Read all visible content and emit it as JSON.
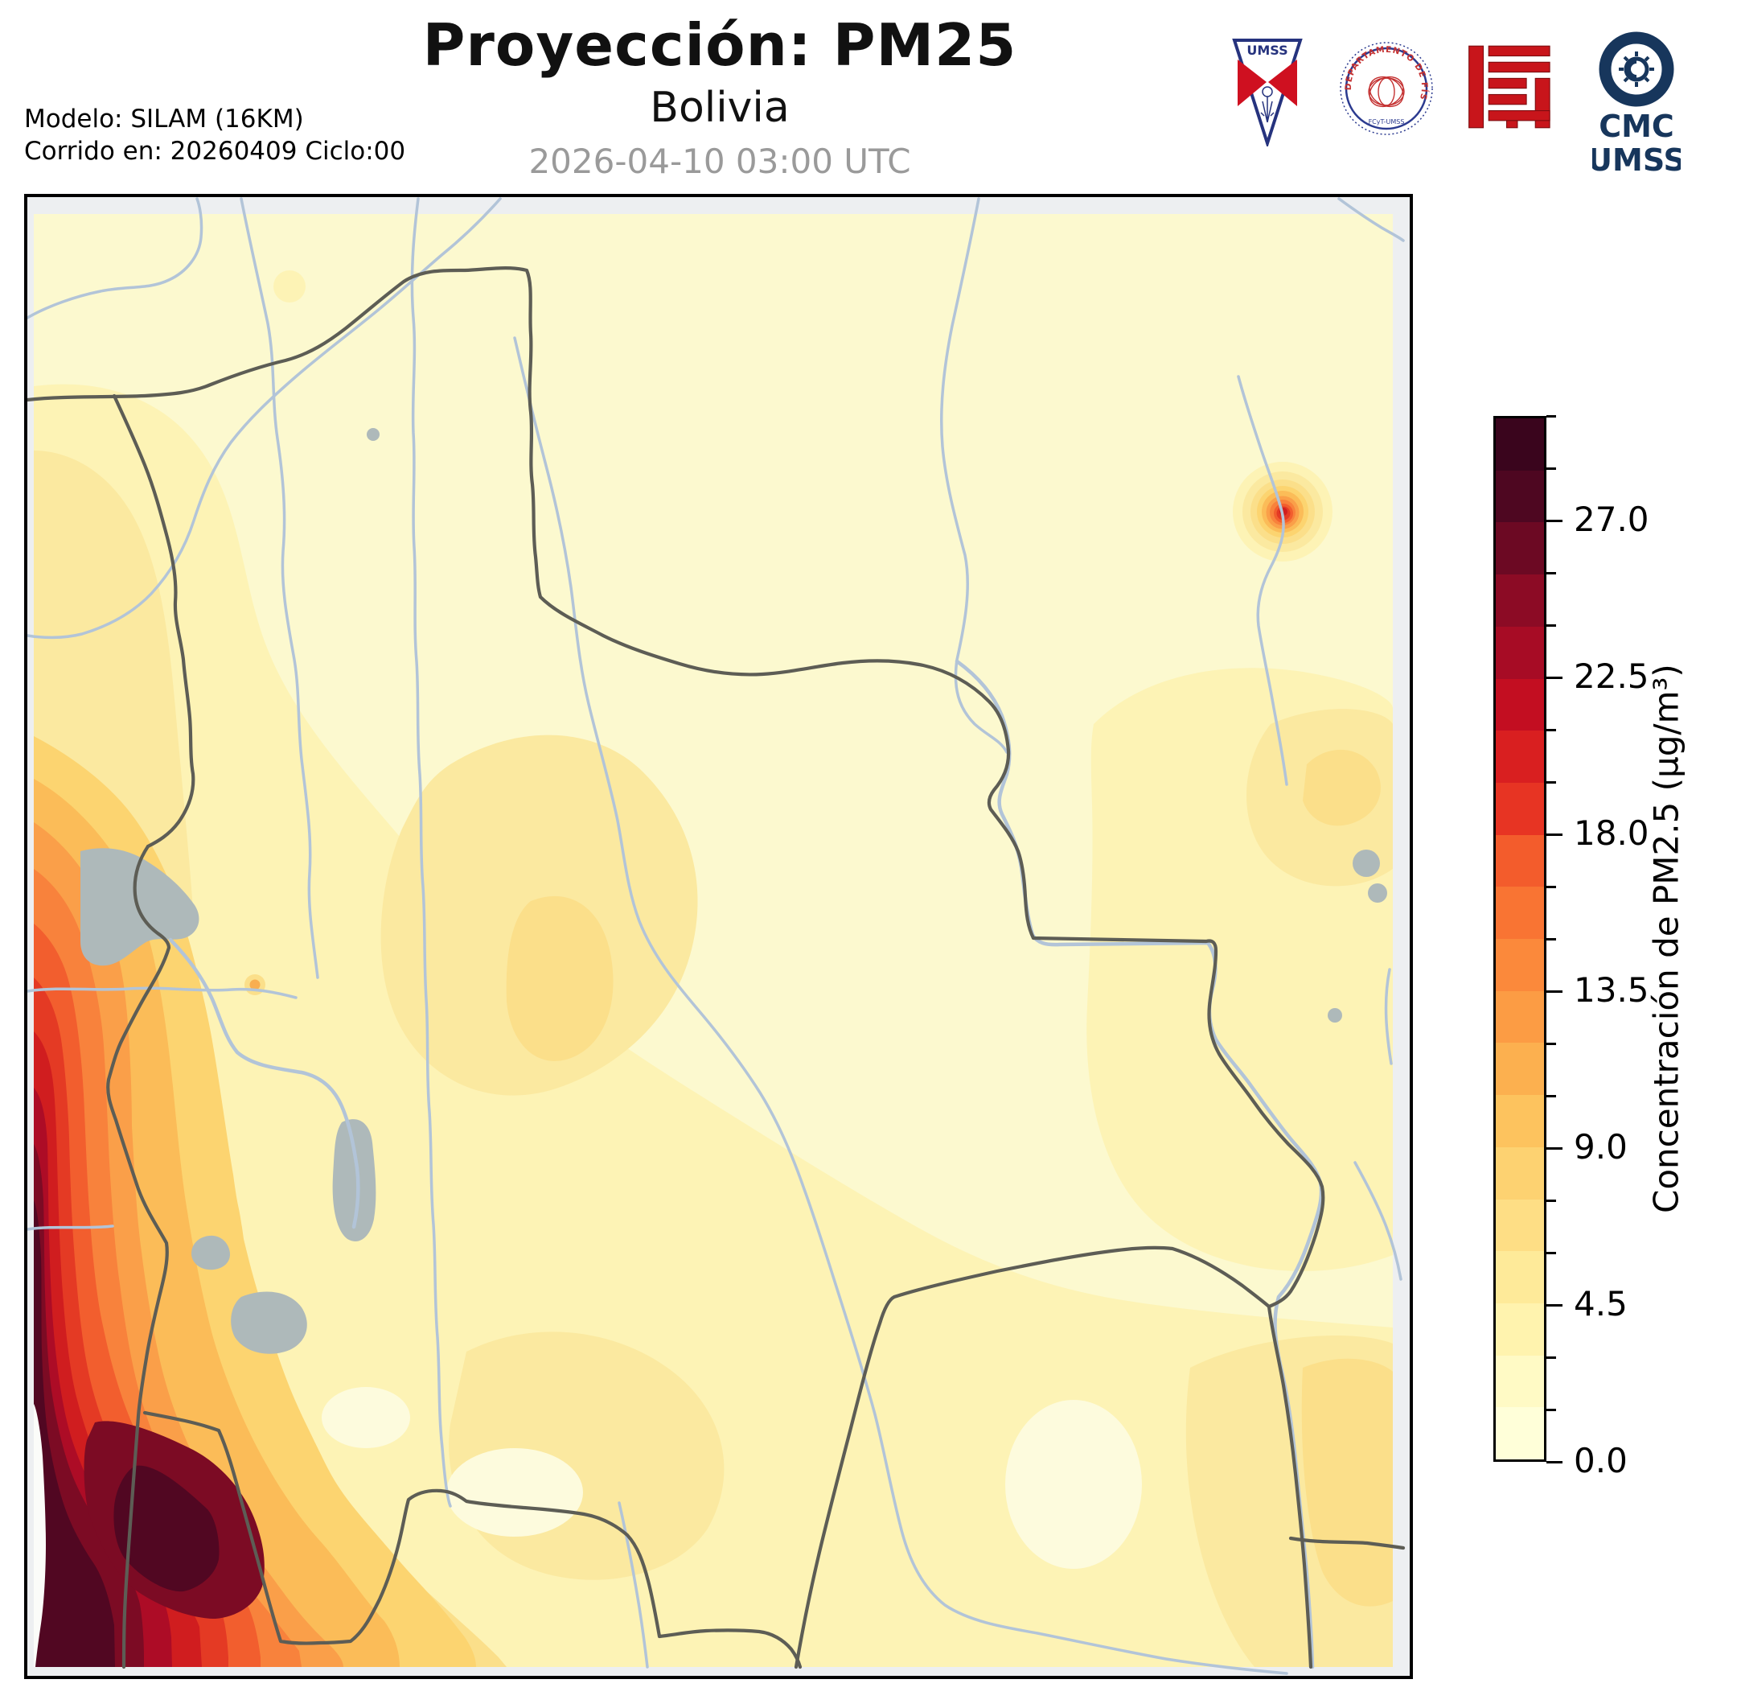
{
  "header": {
    "title": "Proyección: PM25",
    "subtitle": "Bolivia",
    "timestamp": "2026-04-10 03:00 UTC",
    "model_line1": "Modelo: SILAM (16KM)",
    "model_line2": "Corrido en: 20260409 Ciclo:00"
  },
  "logos": {
    "umss_pennant": {
      "label": "UMSS"
    },
    "physics_seal": {
      "label_arc": "DEPARTAMENTO DE FÍSICA",
      "label_bottom": "FCyT-UMSS"
    },
    "fcyt_block": {
      "name": "fcyt-red-mark"
    },
    "cmc": {
      "line1": "CMC",
      "line2": "UMSS"
    }
  },
  "colorbar": {
    "label": "Concentración de PM2.5 (µg/m³)",
    "min": 0.0,
    "max": 30.0,
    "minor_step": 1.5,
    "major_tick_values": [
      0.0,
      4.5,
      9.0,
      13.5,
      18.0,
      22.5,
      27.0
    ],
    "major_tick_labels": [
      "0.0",
      "4.5",
      "9.0",
      "13.5",
      "18.0",
      "22.5",
      "27.0"
    ],
    "colors_bottom_to_top": [
      "#ffffd9",
      "#fffac5",
      "#fff3ae",
      "#feea99",
      "#fede85",
      "#fdd271",
      "#fdc35e",
      "#fcb04f",
      "#fc9c44",
      "#fb893b",
      "#f97433",
      "#f35c2c",
      "#e73423",
      "#d91f20",
      "#c30e21",
      "#a70c25",
      "#8c0b25",
      "#6c0923",
      "#4e0721",
      "#3a051d"
    ]
  },
  "map": {
    "colors": {
      "background_low": "#fcf9cf",
      "level_1": "#fdf3b5",
      "level_2": "#fbe9a0",
      "level_3": "#fbdf8a",
      "plume_scale": [
        "#fcd470",
        "#fbbc58",
        "#fa9f49",
        "#f8823c",
        "#f25e2e",
        "#e43a24",
        "#d01d1f",
        "#ad0c26",
        "#7c0b24",
        "#510722"
      ],
      "river": "#b2c4d8",
      "border": "#5d5d55",
      "lake": "#aeb9ba",
      "margin": "#edeff1",
      "ocean": "#fbfcf9",
      "frame": "#000000"
    },
    "features": [
      "country-borders",
      "rivers",
      "lakes",
      "coastal-plume-west",
      "hotspot-northeast",
      "la-paz-spot"
    ]
  },
  "chart_data": {
    "type": "heatmap",
    "title": "Proyección: PM25 — Bolivia",
    "colorbar_label": "Concentración de PM2.5 (µg/m³)",
    "scale_range": [
      0.0,
      30.0
    ],
    "tick_values": [
      0.0,
      4.5,
      9.0,
      13.5,
      18.0,
      22.5,
      27.0
    ],
    "legend_position": "right",
    "features": [
      {
        "name": "coastal-plume-west",
        "description": "Strong PM2.5 plume along Pacific coast / Chile on left edge of domain",
        "approx_peak_ugm3": 30.0
      },
      {
        "name": "hotspot-northeast",
        "description": "Small isolated hotspot in NE Bolivia on a river",
        "approx_peak_ugm3": 19.5
      },
      {
        "name": "la-paz-spot",
        "description": "Tiny elevated spot SE of Lake Titicaca",
        "approx_peak_ugm3": 10.5
      },
      {
        "name": "background",
        "description": "Most of Bolivia",
        "range_ugm3": [
          1.5,
          7.5
        ]
      }
    ]
  }
}
